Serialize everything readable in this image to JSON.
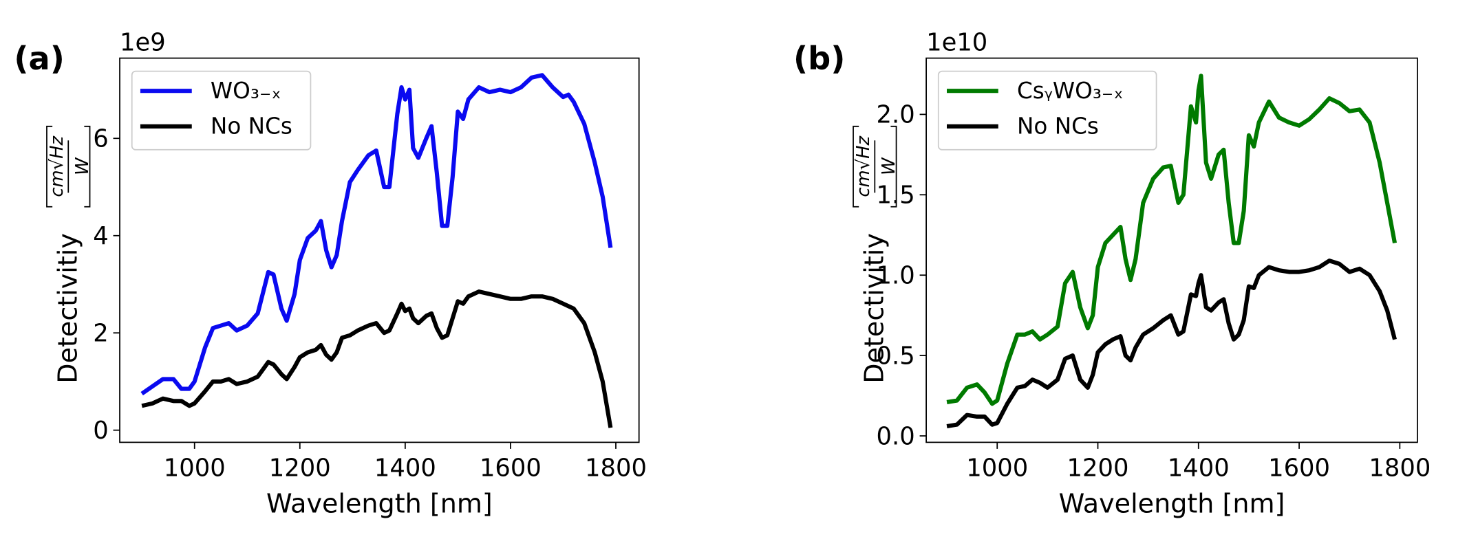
{
  "chart_data": [
    {
      "type": "line",
      "panel_label": "(a)",
      "offset_label": "1e9",
      "xlabel": "Wavelength [nm]",
      "ylabel": "Detectivitiy",
      "ylabel_unit": {
        "numerator": "cm√Hz",
        "denominator": "W"
      },
      "x": [
        900,
        920,
        940,
        960,
        975,
        990,
        1000,
        1020,
        1035,
        1050,
        1065,
        1080,
        1100,
        1120,
        1140,
        1150,
        1165,
        1175,
        1190,
        1200,
        1215,
        1230,
        1240,
        1250,
        1260,
        1270,
        1280,
        1295,
        1310,
        1330,
        1345,
        1360,
        1370,
        1385,
        1393,
        1400,
        1408,
        1415,
        1425,
        1440,
        1450,
        1460,
        1470,
        1480,
        1490,
        1500,
        1510,
        1520,
        1540,
        1560,
        1580,
        1600,
        1620,
        1640,
        1660,
        1680,
        1700,
        1710,
        1720,
        1740,
        1760,
        1775,
        1790
      ],
      "series": [
        {
          "name": "WO₃₋ₓ",
          "color": "#0a0af0",
          "values": [
            0.75,
            0.9,
            1.05,
            1.05,
            0.85,
            0.85,
            1.0,
            1.7,
            2.1,
            2.15,
            2.2,
            2.05,
            2.15,
            2.4,
            3.25,
            3.2,
            2.5,
            2.25,
            2.8,
            3.5,
            3.95,
            4.1,
            4.3,
            3.7,
            3.35,
            3.6,
            4.3,
            5.1,
            5.35,
            5.65,
            5.75,
            5.0,
            5.0,
            6.5,
            7.05,
            6.8,
            7.0,
            5.8,
            5.6,
            6.0,
            6.25,
            5.3,
            4.2,
            4.2,
            5.2,
            6.55,
            6.4,
            6.8,
            7.05,
            6.95,
            7.0,
            6.95,
            7.05,
            7.25,
            7.3,
            7.05,
            6.85,
            6.9,
            6.75,
            6.3,
            5.5,
            4.8,
            3.75
          ]
        },
        {
          "name": "No NCs",
          "color": "#000000",
          "values": [
            0.5,
            0.55,
            0.65,
            0.6,
            0.6,
            0.5,
            0.55,
            0.8,
            1.0,
            1.0,
            1.05,
            0.95,
            1.0,
            1.1,
            1.4,
            1.35,
            1.15,
            1.05,
            1.3,
            1.5,
            1.6,
            1.65,
            1.75,
            1.55,
            1.45,
            1.6,
            1.9,
            1.95,
            2.05,
            2.15,
            2.2,
            2.0,
            2.05,
            2.4,
            2.6,
            2.45,
            2.5,
            2.3,
            2.2,
            2.35,
            2.4,
            2.1,
            1.9,
            1.95,
            2.3,
            2.65,
            2.6,
            2.75,
            2.85,
            2.8,
            2.75,
            2.7,
            2.7,
            2.75,
            2.75,
            2.7,
            2.6,
            2.55,
            2.5,
            2.2,
            1.6,
            1.0,
            0.05
          ]
        }
      ],
      "xlim": [
        858,
        1844
      ],
      "xticks": [
        1000,
        1200,
        1400,
        1600,
        1800
      ],
      "ylim": [
        -0.25,
        7.65
      ],
      "yticks": [
        0,
        2,
        4,
        6
      ],
      "legend": "upper left",
      "grid": false
    },
    {
      "type": "line",
      "panel_label": "(b)",
      "offset_label": "1e10",
      "xlabel": "Wavelength [nm]",
      "ylabel": "Detectivitiy",
      "ylabel_unit": {
        "numerator": "cm√Hz",
        "denominator": "W"
      },
      "x": [
        900,
        920,
        940,
        960,
        975,
        990,
        1000,
        1020,
        1040,
        1055,
        1070,
        1085,
        1100,
        1120,
        1135,
        1150,
        1165,
        1180,
        1190,
        1200,
        1215,
        1230,
        1245,
        1255,
        1265,
        1275,
        1290,
        1310,
        1330,
        1345,
        1360,
        1370,
        1385,
        1395,
        1400,
        1405,
        1415,
        1425,
        1440,
        1450,
        1460,
        1470,
        1480,
        1490,
        1500,
        1510,
        1520,
        1540,
        1560,
        1580,
        1600,
        1620,
        1640,
        1660,
        1680,
        1700,
        1720,
        1740,
        1760,
        1775,
        1790
      ],
      "series": [
        {
          "name": "CsᵧWO₃₋ₓ",
          "color": "#007a00",
          "values": [
            0.21,
            0.22,
            0.3,
            0.32,
            0.27,
            0.2,
            0.22,
            0.45,
            0.63,
            0.63,
            0.65,
            0.6,
            0.63,
            0.68,
            0.95,
            1.02,
            0.8,
            0.67,
            0.75,
            1.05,
            1.2,
            1.25,
            1.3,
            1.1,
            0.97,
            1.1,
            1.45,
            1.6,
            1.67,
            1.68,
            1.45,
            1.5,
            2.05,
            1.95,
            2.15,
            2.24,
            1.7,
            1.6,
            1.75,
            1.78,
            1.45,
            1.2,
            1.2,
            1.4,
            1.87,
            1.8,
            1.95,
            2.08,
            1.98,
            1.95,
            1.93,
            1.97,
            2.03,
            2.1,
            2.07,
            2.02,
            2.03,
            1.95,
            1.7,
            1.45,
            1.2
          ]
        },
        {
          "name": "No NCs",
          "color": "#000000",
          "values": [
            0.06,
            0.07,
            0.13,
            0.12,
            0.12,
            0.07,
            0.08,
            0.2,
            0.3,
            0.31,
            0.35,
            0.33,
            0.3,
            0.35,
            0.48,
            0.5,
            0.35,
            0.3,
            0.38,
            0.52,
            0.57,
            0.6,
            0.62,
            0.5,
            0.47,
            0.55,
            0.63,
            0.67,
            0.72,
            0.75,
            0.63,
            0.65,
            0.88,
            0.87,
            0.95,
            1.0,
            0.8,
            0.78,
            0.83,
            0.85,
            0.7,
            0.6,
            0.63,
            0.72,
            0.93,
            0.92,
            1.0,
            1.05,
            1.03,
            1.02,
            1.02,
            1.03,
            1.05,
            1.09,
            1.07,
            1.02,
            1.04,
            1.0,
            0.9,
            0.78,
            0.6
          ]
        }
      ],
      "xlim": [
        859,
        1835
      ],
      "xticks": [
        1000,
        1200,
        1400,
        1600,
        1800
      ],
      "ylim": [
        -0.04,
        2.35
      ],
      "yticks": [
        {
          "value": 0,
          "label": "0.0"
        },
        0.5,
        {
          "value": 1,
          "label": "1.0"
        },
        1.5,
        {
          "value": 2,
          "label": "2.0"
        }
      ],
      "legend": "upper left",
      "grid": false
    }
  ]
}
